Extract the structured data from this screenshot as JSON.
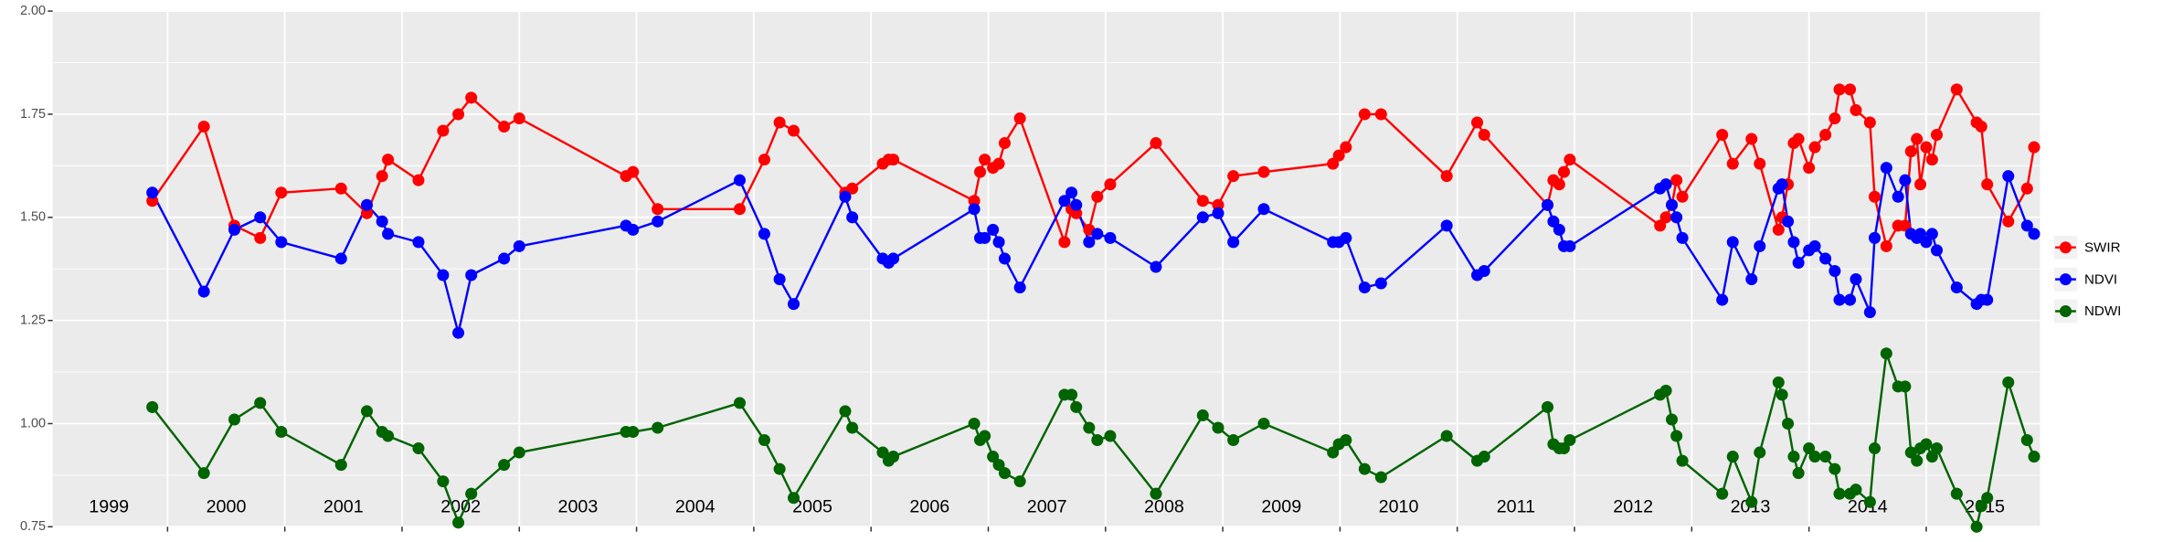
{
  "chart_data": {
    "type": "line",
    "x": [
      1999.87,
      2000.31,
      2000.57,
      2000.79,
      2000.97,
      2001.48,
      2001.7,
      2001.83,
      2001.88,
      2002.14,
      2002.35,
      2002.48,
      2002.59,
      2002.87,
      2003.0,
      2003.91,
      2003.97,
      2004.18,
      2004.88,
      2005.09,
      2005.22,
      2005.34,
      2005.78,
      2005.84,
      2006.1,
      2006.15,
      2006.19,
      2006.88,
      2006.93,
      2006.97,
      2007.04,
      2007.09,
      2007.14,
      2007.27,
      2007.65,
      2007.71,
      2007.75,
      2007.86,
      2007.93,
      2008.04,
      2008.43,
      2008.83,
      2008.96,
      2009.09,
      2009.35,
      2009.94,
      2009.99,
      2010.05,
      2010.21,
      2010.35,
      2010.91,
      2011.17,
      2011.23,
      2011.77,
      2011.82,
      2011.87,
      2011.91,
      2011.96,
      2012.73,
      2012.78,
      2012.83,
      2012.87,
      2012.92,
      2013.26,
      2013.35,
      2013.51,
      2013.58,
      2013.74,
      2013.77,
      2013.82,
      2013.87,
      2013.91,
      2014.0,
      2014.05,
      2014.14,
      2014.22,
      2014.26,
      2014.35,
      2014.4,
      2014.52,
      2014.56,
      2014.66,
      2014.76,
      2014.82,
      2014.87,
      2014.92,
      2014.95,
      2015.0,
      2015.05,
      2015.09,
      2015.26,
      2015.43,
      2015.47,
      2015.52,
      2015.7,
      2015.86,
      2015.92
    ],
    "series": [
      {
        "name": "SWIR",
        "color": "#ff0000",
        "values": [
          1.54,
          1.72,
          1.48,
          1.45,
          1.56,
          1.57,
          1.51,
          1.6,
          1.64,
          1.59,
          1.71,
          1.75,
          1.79,
          1.72,
          1.74,
          1.6,
          1.61,
          1.52,
          1.52,
          1.64,
          1.73,
          1.71,
          1.56,
          1.57,
          1.63,
          1.64,
          1.64,
          1.54,
          1.61,
          1.64,
          1.62,
          1.63,
          1.68,
          1.74,
          1.44,
          1.52,
          1.51,
          1.47,
          1.55,
          1.58,
          1.68,
          1.54,
          1.53,
          1.6,
          1.61,
          1.63,
          1.65,
          1.67,
          1.75,
          1.75,
          1.6,
          1.73,
          1.7,
          1.53,
          1.59,
          1.58,
          1.61,
          1.64,
          1.48,
          1.5,
          1.53,
          1.59,
          1.55,
          1.7,
          1.63,
          1.69,
          1.63,
          1.47,
          1.5,
          1.58,
          1.68,
          1.69,
          1.62,
          1.67,
          1.7,
          1.74,
          1.81,
          1.81,
          1.76,
          1.73,
          1.55,
          1.43,
          1.48,
          1.48,
          1.66,
          1.69,
          1.58,
          1.67,
          1.64,
          1.7,
          1.81,
          1.73,
          1.72,
          1.58,
          1.49,
          1.57,
          1.67
        ]
      },
      {
        "name": "NDVI",
        "color": "#0000ff",
        "values": [
          1.56,
          1.32,
          1.47,
          1.5,
          1.44,
          1.4,
          1.53,
          1.49,
          1.46,
          1.44,
          1.36,
          1.22,
          1.36,
          1.4,
          1.43,
          1.48,
          1.47,
          1.49,
          1.59,
          1.46,
          1.35,
          1.29,
          1.55,
          1.5,
          1.4,
          1.39,
          1.4,
          1.52,
          1.45,
          1.45,
          1.47,
          1.44,
          1.4,
          1.33,
          1.54,
          1.56,
          1.53,
          1.44,
          1.46,
          1.45,
          1.38,
          1.5,
          1.51,
          1.44,
          1.52,
          1.44,
          1.44,
          1.45,
          1.33,
          1.34,
          1.48,
          1.36,
          1.37,
          1.53,
          1.49,
          1.47,
          1.43,
          1.43,
          1.57,
          1.58,
          1.53,
          1.5,
          1.45,
          1.3,
          1.44,
          1.35,
          1.43,
          1.57,
          1.58,
          1.49,
          1.44,
          1.39,
          1.42,
          1.43,
          1.4,
          1.37,
          1.3,
          1.3,
          1.35,
          1.27,
          1.45,
          1.62,
          1.55,
          1.59,
          1.46,
          1.45,
          1.46,
          1.44,
          1.46,
          1.42,
          1.33,
          1.29,
          1.3,
          1.3,
          1.6,
          1.48,
          1.46
        ]
      },
      {
        "name": "NDWI",
        "color": "#006400",
        "values": [
          1.04,
          0.88,
          1.01,
          1.05,
          0.98,
          0.9,
          1.03,
          0.98,
          0.97,
          0.94,
          0.86,
          0.76,
          0.83,
          0.9,
          0.93,
          0.98,
          0.98,
          0.99,
          1.05,
          0.96,
          0.89,
          0.82,
          1.03,
          0.99,
          0.93,
          0.91,
          0.92,
          1.0,
          0.96,
          0.97,
          0.92,
          0.9,
          0.88,
          0.86,
          1.07,
          1.07,
          1.04,
          0.99,
          0.96,
          0.97,
          0.83,
          1.02,
          0.99,
          0.96,
          1.0,
          0.93,
          0.95,
          0.96,
          0.89,
          0.87,
          0.97,
          0.91,
          0.92,
          1.04,
          0.95,
          0.94,
          0.94,
          0.96,
          1.07,
          1.08,
          1.01,
          0.97,
          0.91,
          0.83,
          0.92,
          0.81,
          0.93,
          1.1,
          1.07,
          1.0,
          0.92,
          0.88,
          0.94,
          0.92,
          0.92,
          0.89,
          0.83,
          0.83,
          0.84,
          0.81,
          0.94,
          1.17,
          1.09,
          1.09,
          0.93,
          0.91,
          0.94,
          0.95,
          0.92,
          0.94,
          0.83,
          0.75,
          0.8,
          0.82,
          1.1,
          0.96,
          0.92
        ]
      }
    ],
    "xlim": [
      1999.02,
      2015.97
    ],
    "xticks": [
      2000,
      2001,
      2002,
      2003,
      2004,
      2005,
      2006,
      2007,
      2008,
      2009,
      2010,
      2011,
      2012,
      2013,
      2014,
      2015
    ],
    "year_labels": [
      {
        "x": 1999.5,
        "label": "1999"
      },
      {
        "x": 2000.5,
        "label": "2000"
      },
      {
        "x": 2001.5,
        "label": "2001"
      },
      {
        "x": 2002.5,
        "label": "2002"
      },
      {
        "x": 2003.5,
        "label": "2003"
      },
      {
        "x": 2004.5,
        "label": "2004"
      },
      {
        "x": 2005.5,
        "label": "2005"
      },
      {
        "x": 2006.5,
        "label": "2006"
      },
      {
        "x": 2007.5,
        "label": "2007"
      },
      {
        "x": 2008.5,
        "label": "2008"
      },
      {
        "x": 2009.5,
        "label": "2009"
      },
      {
        "x": 2010.5,
        "label": "2010"
      },
      {
        "x": 2011.5,
        "label": "2011"
      },
      {
        "x": 2012.5,
        "label": "2012"
      },
      {
        "x": 2013.5,
        "label": "2013"
      },
      {
        "x": 2014.5,
        "label": "2014"
      },
      {
        "x": 2015.5,
        "label": "2015"
      }
    ],
    "ylim": [
      0.75,
      2.0
    ],
    "yticks": [
      {
        "value": 0.75,
        "label": "0.75"
      },
      {
        "value": 1.0,
        "label": "1.00"
      },
      {
        "value": 1.25,
        "label": "1.25"
      },
      {
        "value": 1.5,
        "label": "1.50"
      },
      {
        "value": 1.75,
        "label": "1.75"
      },
      {
        "value": 2.0,
        "label": "2.00"
      }
    ],
    "grid": true,
    "legend": "right"
  }
}
